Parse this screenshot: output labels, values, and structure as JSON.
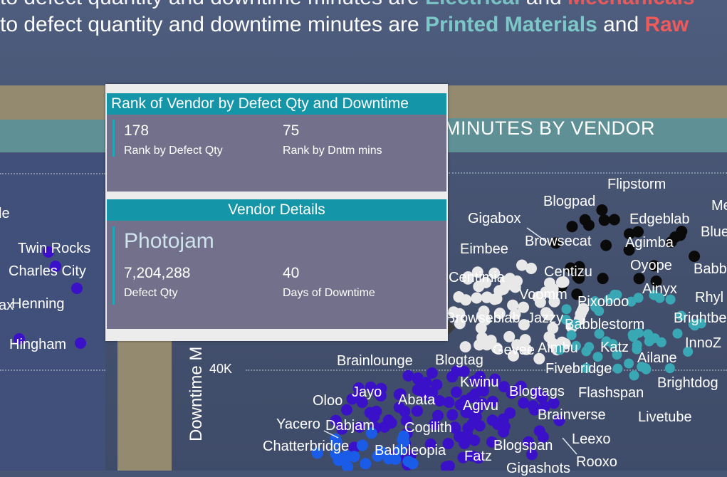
{
  "headline": {
    "top_line": {
      "prefix": "to defect quantity and downtime minutes are ",
      "highlight1": "Electrical",
      "middle": " and ",
      "highlight2": "Mechanicals"
    },
    "main_line": {
      "prefix": "to defect quantity and downtime minutes are ",
      "highlight1": "Printed Materials",
      "middle": " and ",
      "highlight2": "Raw"
    }
  },
  "chart": {
    "title": "MINUTES BY VENDOR",
    "y_axis_label": "Downtime M",
    "y_tick": "40K"
  },
  "left_labels": [
    "le",
    "Twin Rocks",
    "Charles City",
    "ax",
    "Henning",
    "Hingham"
  ],
  "vendor_labels": [
    "Flipstorm",
    "Blogpad",
    "Me",
    "Gigabox",
    "Edgeblab",
    "Blue",
    "Browsecat",
    "Eimbee",
    "Agimba",
    "Centizu",
    "Oyope",
    "Babb",
    "Centimia",
    "Voomm",
    "Ainyx",
    "Rhyl",
    "Pixoboo",
    "Browseblab",
    "Jazzy",
    "Brightbe",
    "Babblestorm",
    "Katz",
    "InnoZ",
    "Gevee",
    "Aimbu",
    "Ailane",
    "Brainlounge",
    "Blogtag",
    "Fivebridge",
    "Kwinu",
    "Brightdog",
    "Jayo",
    "Blogtags",
    "Flashspan",
    "Oloo",
    "Abata",
    "Agivu",
    "Livetube",
    "Brainverse",
    "Yacero",
    "Dabjam",
    "Cogilith",
    "Leexo",
    "Chatterbridge",
    "Babbleopia",
    "Blogspan",
    "Fatz",
    "Rooxo",
    "Gigashots"
  ],
  "tooltip": {
    "rank_header": "Rank of Vendor by Defect Qty and Downtime",
    "rank_defect_value": "178",
    "rank_defect_caption": "Rank by Defect Qty",
    "rank_dntm_value": "75",
    "rank_dntm_caption": "Rank by Dntm mins",
    "details_header": "Vendor Details",
    "vendor_name": "Photojam",
    "defect_qty_value": "7,204,288",
    "defect_qty_caption": "Defect Qty",
    "days_downtime_value": "40",
    "days_downtime_caption": "Days of Downtime"
  },
  "colors": {
    "black_cluster": "#0a0a0a",
    "white_cluster": "#e8e8e8",
    "teal_cluster": "#3aa7b5",
    "purple_cluster": "#3a10c8",
    "blue_cluster": "#1a5ce8",
    "tooltip_header": "#1595a8",
    "tooltip_body": "#72708a"
  }
}
